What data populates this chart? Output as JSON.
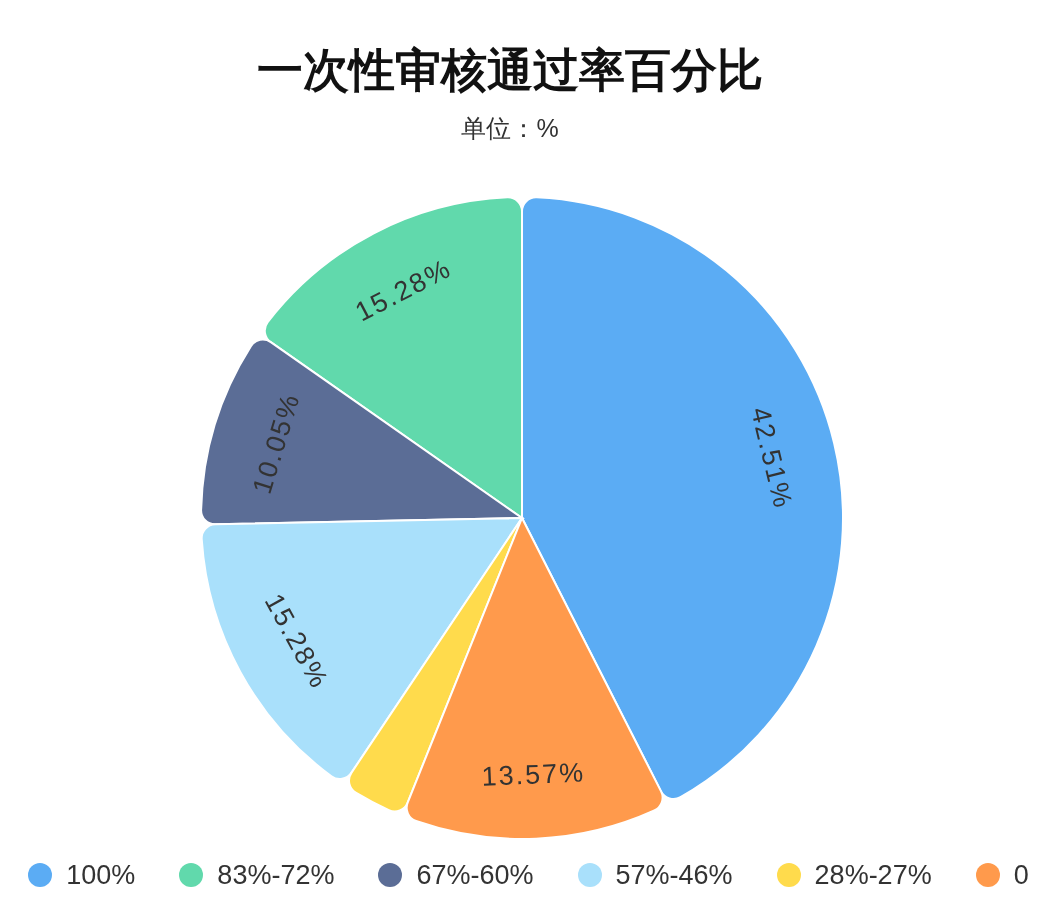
{
  "chart_data": {
    "type": "pie",
    "title": "一次性审核通过率百分比",
    "subtitle": "单位：%",
    "categories": [
      "100%",
      "83%-72%",
      "67%-60%",
      "57%-46%",
      "28%-27%",
      "0"
    ],
    "values": [
      42.51,
      15.28,
      10.05,
      15.28,
      3.31,
      13.57
    ],
    "colors": [
      "#5bacf4",
      "#61d9ac",
      "#5b6d96",
      "#a9e0fb",
      "#ffdb4c",
      "#ff9a4c"
    ],
    "value_labels": [
      "42.51%",
      "15.28%",
      "10.05%",
      "15.28%",
      null,
      "13.57%"
    ],
    "legend": "bottom"
  }
}
